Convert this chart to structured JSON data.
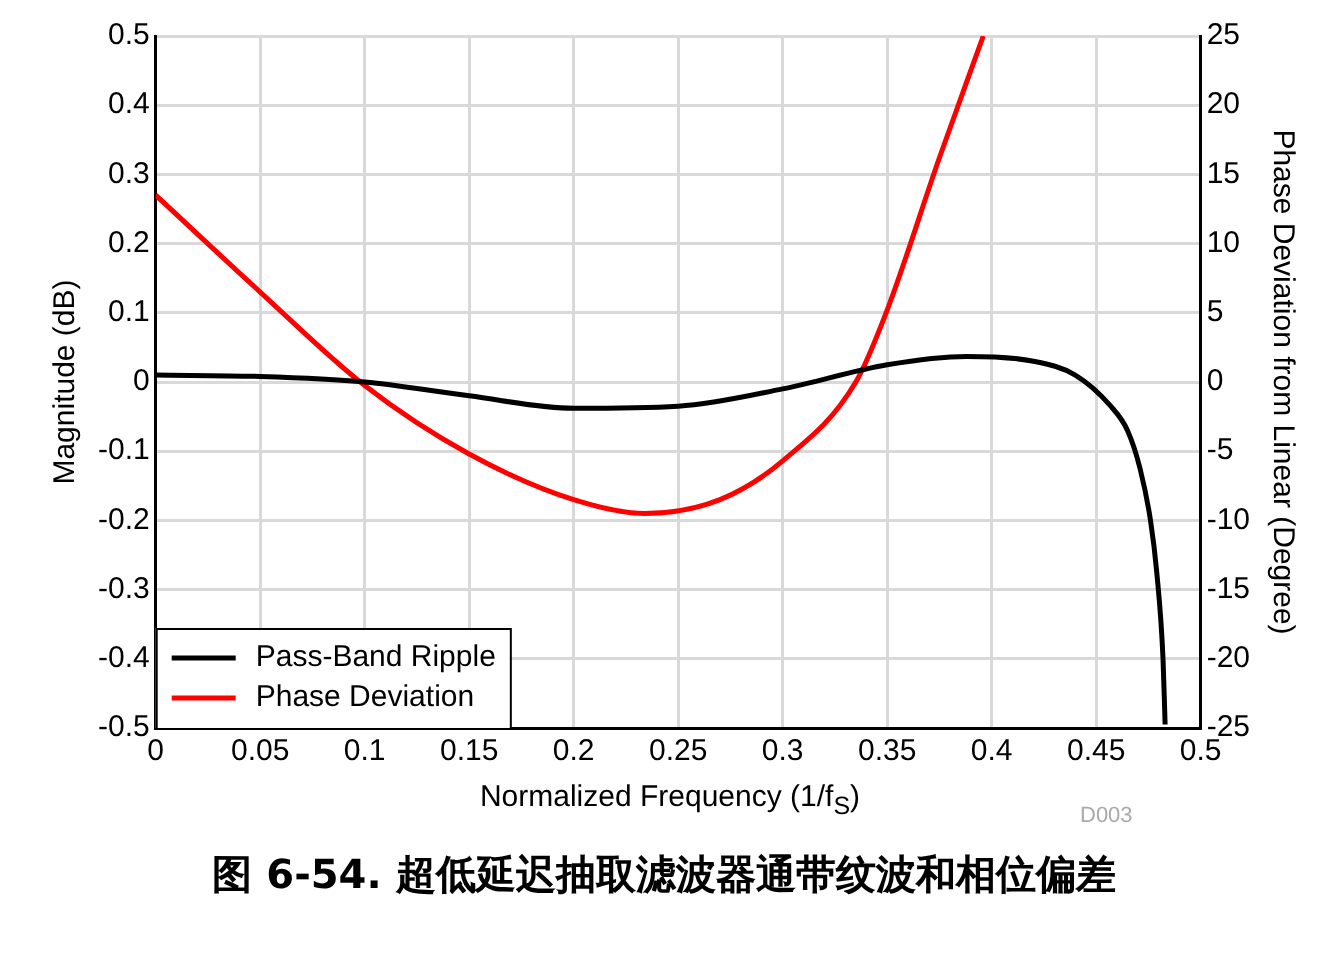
{
  "chart_data": {
    "type": "line",
    "title": "图 6-54. 超低延迟抽取滤波器通带纹波和相位偏差",
    "xlabel": "Normalized Frequency (1/f$_{S}$)",
    "ylabel": "Magnitude (dB)",
    "y2label": "Phase Deviation from Linear (Degree)",
    "annotations": [
      "D003"
    ],
    "xlim": [
      0,
      0.5
    ],
    "xticks": [
      0,
      0.05,
      0.1,
      0.15,
      0.2,
      0.25,
      0.3,
      0.35,
      0.4,
      0.45,
      0.5
    ],
    "ylim": [
      -0.5,
      0.5
    ],
    "yticks": [
      -0.5,
      -0.4,
      -0.3,
      -0.2,
      -0.1,
      0,
      0.1,
      0.2,
      0.3,
      0.4,
      0.5
    ],
    "y2lim": [
      -25,
      25
    ],
    "y2ticks": [
      -25,
      -20,
      -15,
      -10,
      -5,
      0,
      5,
      10,
      15,
      20,
      25
    ],
    "grid": true,
    "legend": "bottom left",
    "marker": "none",
    "line_style": "solid",
    "series": [
      {
        "name": "Pass-Band Ripple",
        "color": "#000000",
        "x": [
          0,
          0.05,
          0.1,
          0.15,
          0.2,
          0.25,
          0.3,
          0.35,
          0.388,
          0.42,
          0.44,
          0.457,
          0.465,
          0.471,
          0.476,
          0.479,
          0.482,
          0.483
        ],
        "values": [
          0.01,
          0.008,
          0.0,
          -0.02,
          -0.038,
          -0.035,
          -0.01,
          0.025,
          0.037,
          0.03,
          0.01,
          -0.035,
          -0.07,
          -0.125,
          -0.2,
          -0.275,
          -0.4,
          -0.495
        ]
      },
      {
        "name": "Phase Deviation",
        "color": "#ff0000",
        "axis": "y2",
        "x": [
          0,
          0.05,
          0.1,
          0.15,
          0.2,
          0.234,
          0.27,
          0.3,
          0.335,
          0.35,
          0.375,
          0.396
        ],
        "values": [
          13.5,
          6.5,
          -0.25,
          -5.2,
          -8.5,
          -9.5,
          -8.5,
          -5.7,
          0,
          5.2,
          16.2,
          25
        ]
      }
    ]
  }
}
